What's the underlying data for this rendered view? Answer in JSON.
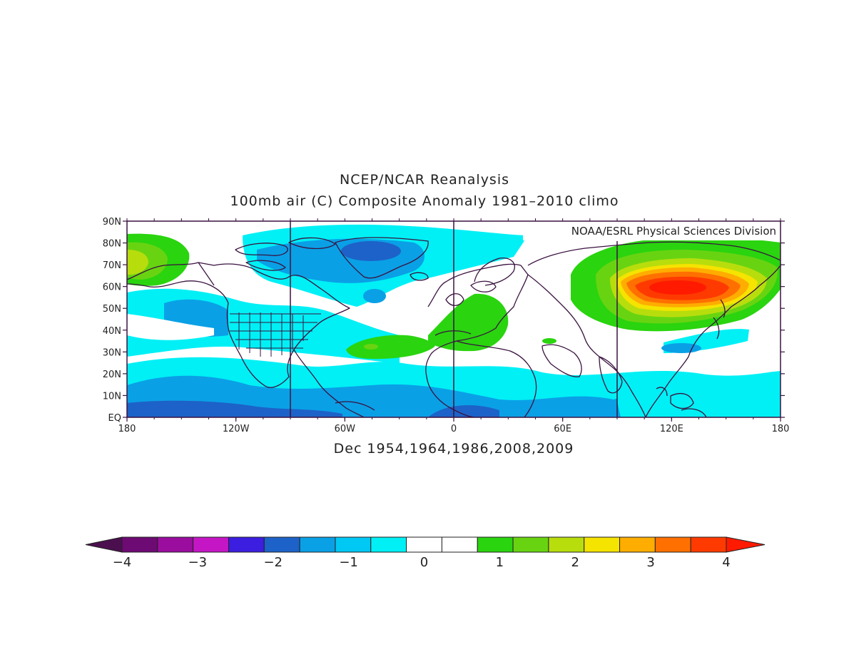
{
  "map": {
    "title": "NCEP/NCAR Reanalysis",
    "subtitle": "100mb air (C) Composite Anomaly 1981-2010 climo",
    "credit": "NOAA/ESRL Physical Sciences Division",
    "caption": "Dec 1954,1964,1986,2008,2009",
    "lon_ticks": [
      "180",
      "120W",
      "60W",
      "0",
      "60E",
      "120E",
      "180"
    ],
    "lat_ticks": [
      "90N",
      "80N",
      "70N",
      "60N",
      "50N",
      "40N",
      "30N",
      "20N",
      "10N",
      "EQ"
    ],
    "projection": "cylindrical equidistant, 180W–180E, EQ–90N",
    "region": "Northern Hemisphere"
  },
  "colorbar": {
    "labels": [
      "-4",
      "-3",
      "-2",
      "-1",
      "0",
      "1",
      "2",
      "3",
      "4"
    ],
    "colors": [
      "#4b0f4f",
      "#6e0a73",
      "#9a0d9e",
      "#c516c5",
      "#3b1ee0",
      "#1d62c8",
      "#0aa0e6",
      "#00c8f5",
      "#00f0f5",
      "#ffffff",
      "#ffffff",
      "#2ad40f",
      "#68d411",
      "#b8dd0d",
      "#f5e300",
      "#ffad00",
      "#ff7000",
      "#ff3a00",
      "#ff1a00"
    ],
    "left_arrow_color": "#4b0f4f",
    "right_arrow_color": "#ff1a00"
  },
  "colors": {
    "frame": "#3a1240",
    "coast": "#3a1240"
  }
}
